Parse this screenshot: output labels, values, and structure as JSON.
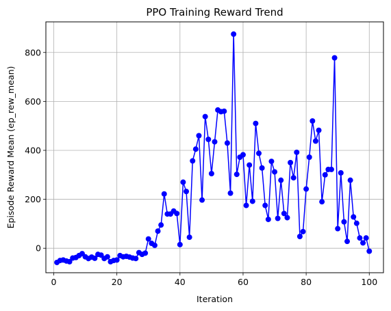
{
  "chart_data": {
    "type": "line",
    "title": "PPO Training Reward Trend",
    "xlabel": "Iteration",
    "ylabel": "Episode Reward Mean (ep_rew_mean)",
    "xlim": [
      -2.5,
      104.5
    ],
    "ylim": [
      -100,
      925
    ],
    "xticks": [
      0,
      20,
      40,
      60,
      80,
      100
    ],
    "yticks": [
      0,
      200,
      400,
      600,
      800
    ],
    "grid": true,
    "colors": {
      "series": "#0000ff",
      "grid": "#b0b0b0",
      "axes": "#000000"
    },
    "series": [
      {
        "marker": "circle",
        "x": [
          1,
          2,
          3,
          4,
          5,
          6,
          7,
          8,
          9,
          10,
          11,
          12,
          13,
          14,
          15,
          16,
          17,
          18,
          19,
          20,
          21,
          22,
          23,
          24,
          25,
          26,
          27,
          28,
          29,
          30,
          31,
          32,
          33,
          34,
          35,
          36,
          37,
          38,
          39,
          40,
          41,
          42,
          43,
          44,
          45,
          46,
          47,
          48,
          49,
          50,
          51,
          52,
          53,
          54,
          55,
          56,
          57,
          58,
          59,
          60,
          61,
          62,
          63,
          64,
          65,
          66,
          67,
          68,
          69,
          70,
          71,
          72,
          73,
          74,
          75,
          76,
          77,
          78,
          79,
          80,
          81,
          82,
          83,
          84,
          85,
          86,
          87,
          88,
          89,
          90,
          91,
          92,
          93,
          94,
          95,
          96,
          97,
          98,
          99,
          100
        ],
        "values": [
          -58,
          -50,
          -48,
          -52,
          -55,
          -40,
          -38,
          -30,
          -22,
          -35,
          -42,
          -36,
          -41,
          -25,
          -28,
          -42,
          -35,
          -55,
          -50,
          -48,
          -30,
          -35,
          -33,
          -36,
          -40,
          -42,
          -18,
          -25,
          -20,
          38,
          20,
          12,
          70,
          95,
          222,
          140,
          140,
          152,
          142,
          15,
          270,
          232,
          45,
          357,
          405,
          460,
          197,
          538,
          445,
          305,
          435,
          565,
          558,
          560,
          430,
          225,
          875,
          302,
          372,
          382,
          175,
          340,
          192,
          510,
          388,
          328,
          175,
          118,
          355,
          312,
          122,
          278,
          142,
          125,
          350,
          288,
          392,
          48,
          68,
          242,
          372,
          520,
          438,
          482,
          190,
          300,
          322,
          322,
          778,
          80,
          308,
          108,
          28,
          278,
          128,
          102,
          42,
          22,
          42,
          -12
        ]
      }
    ]
  }
}
